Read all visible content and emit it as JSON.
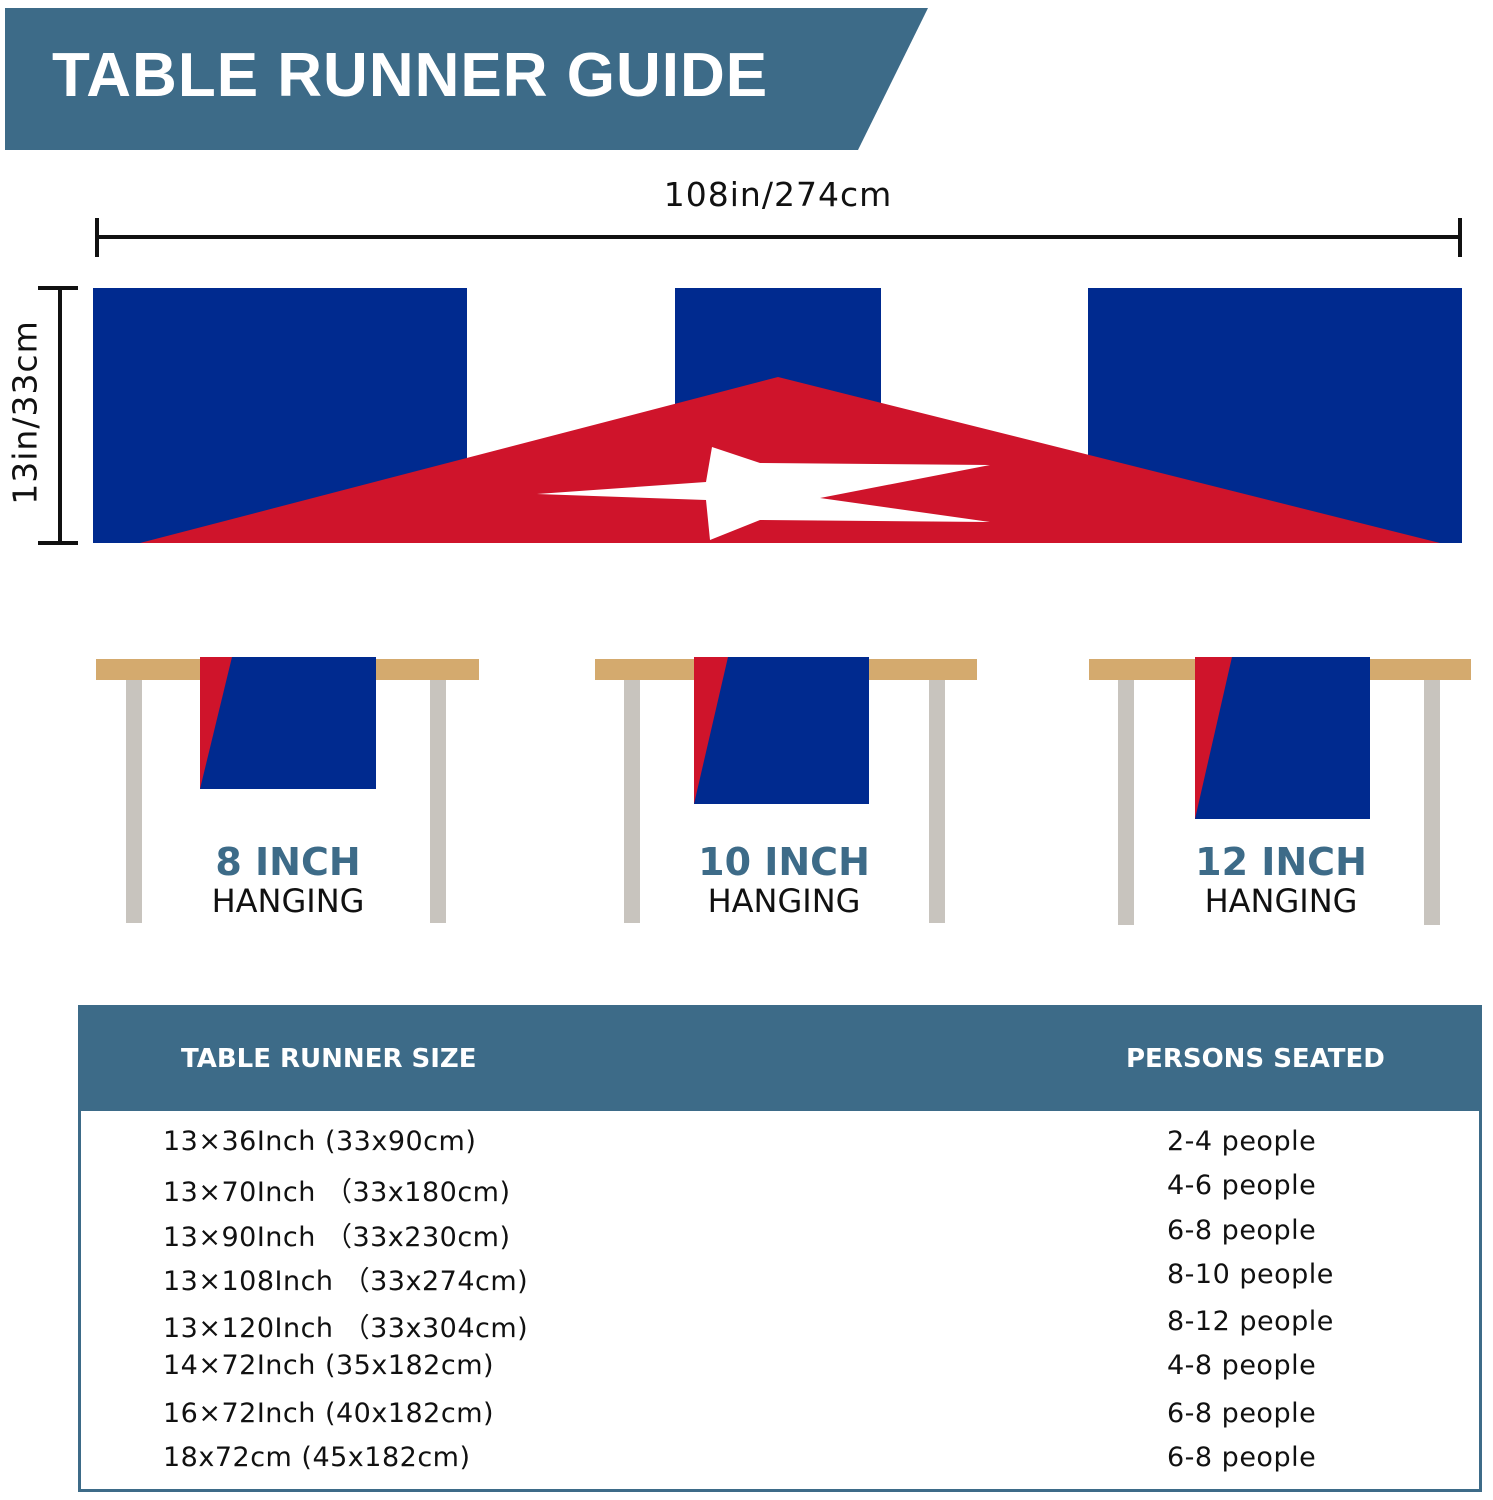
{
  "header": {
    "title": "TABLE RUNNER GUIDE"
  },
  "dimensions": {
    "width": "108in/274cm",
    "height": "13in/33cm"
  },
  "colors": {
    "banner": "#3d6b88",
    "flag_blue": "#002a8f",
    "flag_red": "#cf142b",
    "table_top": "#d4aa6e",
    "table_leg": "#c8c4be"
  },
  "hanging": [
    {
      "length": "8 INCH",
      "label": "HANGING"
    },
    {
      "length": "10 INCH",
      "label": "HANGING"
    },
    {
      "length": "12 INCH",
      "label": "HANGING"
    }
  ],
  "size_table": {
    "headers": [
      "TABLE RUNNER SIZE",
      "PERSONS SEATED"
    ],
    "rows": [
      [
        "13×36Inch (33x90cm)",
        "2-4 people"
      ],
      [
        "13×70Inch （33x180cm)",
        "4-6 people"
      ],
      [
        "13×90Inch （33x230cm)",
        "6-8 people"
      ],
      [
        "13×108Inch （33x274cm)",
        "8-10 people"
      ],
      [
        "13×120Inch （33x304cm)",
        "8-12 people"
      ],
      [
        "14×72Inch (35x182cm)",
        "4-8 people"
      ],
      [
        "16×72Inch (40x182cm)",
        "6-8 people"
      ],
      [
        "18x72cm (45x182cm)",
        "6-8 people"
      ]
    ]
  }
}
